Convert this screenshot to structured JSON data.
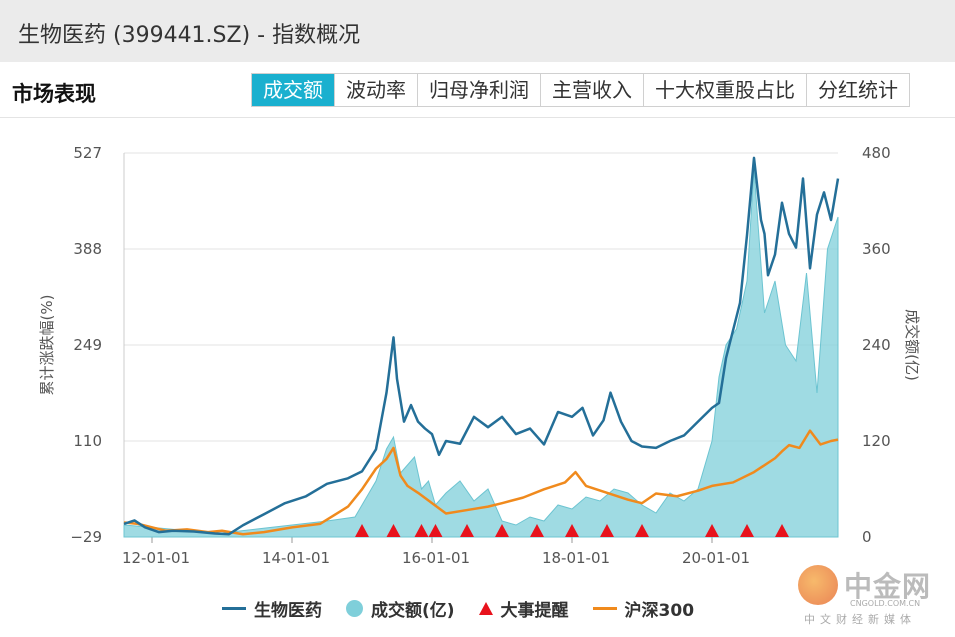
{
  "header": {
    "title": "生物医药 (399441.SZ) - 指数概况"
  },
  "section_title": "市场表现",
  "tabs": [
    {
      "label": "成交额",
      "active": true
    },
    {
      "label": "波动率",
      "active": false
    },
    {
      "label": "归母净利润",
      "active": false
    },
    {
      "label": "主营收入",
      "active": false
    },
    {
      "label": "十大权重股占比",
      "active": false
    },
    {
      "label": "分红统计",
      "active": false
    }
  ],
  "colors": {
    "index_line": "#246f98",
    "volume": "#7fcfda",
    "events": "#e8121c",
    "hs300": "#f08a1d",
    "accent_tab": "#1ab0cf"
  },
  "watermark": {
    "name": "中金网",
    "domain": "CNGOLD.COM.CN",
    "sub": "中文财经新媒体"
  },
  "chart_data": {
    "type": "line",
    "ylabel_left": "累计涨跌幅(%)",
    "ylabel_right": "成交额(亿)",
    "left_ticks": [
      "527",
      "388",
      "249",
      "110",
      "−29"
    ],
    "right_ticks": [
      "480",
      "360",
      "240",
      "120",
      "0"
    ],
    "ylim_left": [
      -29,
      527
    ],
    "ylim_right": [
      0,
      480
    ],
    "xlim": [
      2011.6,
      2021.8
    ],
    "x_ticks": [
      {
        "label": "12-01-01",
        "x": 2012.0
      },
      {
        "label": "14-01-01",
        "x": 2014.0
      },
      {
        "label": "16-01-01",
        "x": 2016.0
      },
      {
        "label": "18-01-01",
        "x": 2018.0
      },
      {
        "label": "20-01-01",
        "x": 2020.0
      }
    ],
    "legend": [
      "生物医药",
      "成交额(亿)",
      "大事提醒",
      "沪深300"
    ],
    "series": [
      {
        "name": "生物医药",
        "kind": "line",
        "axis": "left",
        "x": [
          2011.6,
          2011.75,
          2011.9,
          2012.1,
          2012.3,
          2012.6,
          2012.9,
          2013.1,
          2013.3,
          2013.6,
          2013.9,
          2014.2,
          2014.5,
          2014.8,
          2015.0,
          2015.2,
          2015.35,
          2015.45,
          2015.5,
          2015.6,
          2015.7,
          2015.8,
          2015.9,
          2016.0,
          2016.1,
          2016.2,
          2016.4,
          2016.6,
          2016.8,
          2017.0,
          2017.2,
          2017.4,
          2017.6,
          2017.8,
          2018.0,
          2018.15,
          2018.3,
          2018.45,
          2018.55,
          2018.7,
          2018.85,
          2019.0,
          2019.2,
          2019.4,
          2019.6,
          2019.8,
          2020.0,
          2020.1,
          2020.2,
          2020.3,
          2020.4,
          2020.5,
          2020.6,
          2020.7,
          2020.75,
          2020.8,
          2020.9,
          2021.0,
          2021.1,
          2021.2,
          2021.3,
          2021.4,
          2021.5,
          2021.6,
          2021.7,
          2021.8
        ],
        "values": [
          -10,
          -5,
          -15,
          -22,
          -20,
          -21,
          -24,
          -25,
          -12,
          4,
          20,
          30,
          48,
          56,
          66,
          98,
          180,
          260,
          200,
          138,
          162,
          138,
          128,
          120,
          90,
          110,
          106,
          145,
          130,
          145,
          120,
          128,
          105,
          152,
          145,
          158,
          118,
          140,
          180,
          138,
          110,
          102,
          100,
          110,
          118,
          138,
          158,
          165,
          230,
          270,
          310,
          408,
          520,
          430,
          410,
          350,
          380,
          455,
          410,
          390,
          490,
          360,
          438,
          470,
          430,
          490
        ]
      },
      {
        "name": "沪深300",
        "kind": "line",
        "axis": "left",
        "x": [
          2011.6,
          2011.8,
          2012.0,
          2012.2,
          2012.5,
          2012.8,
          2013.0,
          2013.3,
          2013.6,
          2014.0,
          2014.4,
          2014.8,
          2015.0,
          2015.2,
          2015.35,
          2015.45,
          2015.55,
          2015.65,
          2015.8,
          2016.0,
          2016.2,
          2016.5,
          2016.8,
          2017.0,
          2017.3,
          2017.6,
          2017.9,
          2018.05,
          2018.2,
          2018.5,
          2018.8,
          2019.0,
          2019.2,
          2019.5,
          2019.8,
          2020.0,
          2020.3,
          2020.6,
          2020.9,
          2021.0,
          2021.1,
          2021.25,
          2021.4,
          2021.55,
          2021.7,
          2021.8
        ],
        "values": [
          -8,
          -10,
          -15,
          -20,
          -18,
          -22,
          -20,
          -25,
          -22,
          -15,
          -10,
          15,
          40,
          70,
          84,
          100,
          60,
          45,
          35,
          20,
          5,
          10,
          15,
          20,
          28,
          40,
          50,
          65,
          45,
          35,
          25,
          20,
          34,
          30,
          38,
          45,
          50,
          65,
          85,
          95,
          104,
          100,
          125,
          105,
          110,
          112
        ]
      },
      {
        "name": "成交额(亿)",
        "kind": "area",
        "axis": "right",
        "x": [
          2011.6,
          2012.0,
          2012.5,
          2013.0,
          2013.5,
          2014.0,
          2014.5,
          2014.9,
          2015.0,
          2015.2,
          2015.35,
          2015.45,
          2015.55,
          2015.65,
          2015.75,
          2015.85,
          2015.95,
          2016.05,
          2016.2,
          2016.4,
          2016.6,
          2016.8,
          2017.0,
          2017.2,
          2017.4,
          2017.6,
          2017.8,
          2018.0,
          2018.2,
          2018.4,
          2018.6,
          2018.8,
          2019.0,
          2019.2,
          2019.4,
          2019.6,
          2019.8,
          2020.0,
          2020.1,
          2020.2,
          2020.35,
          2020.5,
          2020.6,
          2020.75,
          2020.9,
          2021.05,
          2021.2,
          2021.35,
          2021.5,
          2021.65,
          2021.8
        ],
        "values": [
          15,
          12,
          8,
          5,
          10,
          15,
          20,
          25,
          40,
          70,
          110,
          125,
          80,
          90,
          100,
          60,
          70,
          40,
          55,
          70,
          45,
          60,
          20,
          15,
          25,
          20,
          40,
          35,
          50,
          45,
          60,
          55,
          40,
          30,
          55,
          45,
          60,
          120,
          200,
          240,
          260,
          320,
          460,
          280,
          320,
          240,
          220,
          330,
          180,
          360,
          400
        ]
      }
    ],
    "events": {
      "name": "大事提醒",
      "x": [
        2015.0,
        2015.45,
        2015.85,
        2016.05,
        2016.5,
        2017.0,
        2017.5,
        2018.0,
        2018.5,
        2019.0,
        2020.0,
        2020.5,
        2021.0
      ]
    }
  }
}
